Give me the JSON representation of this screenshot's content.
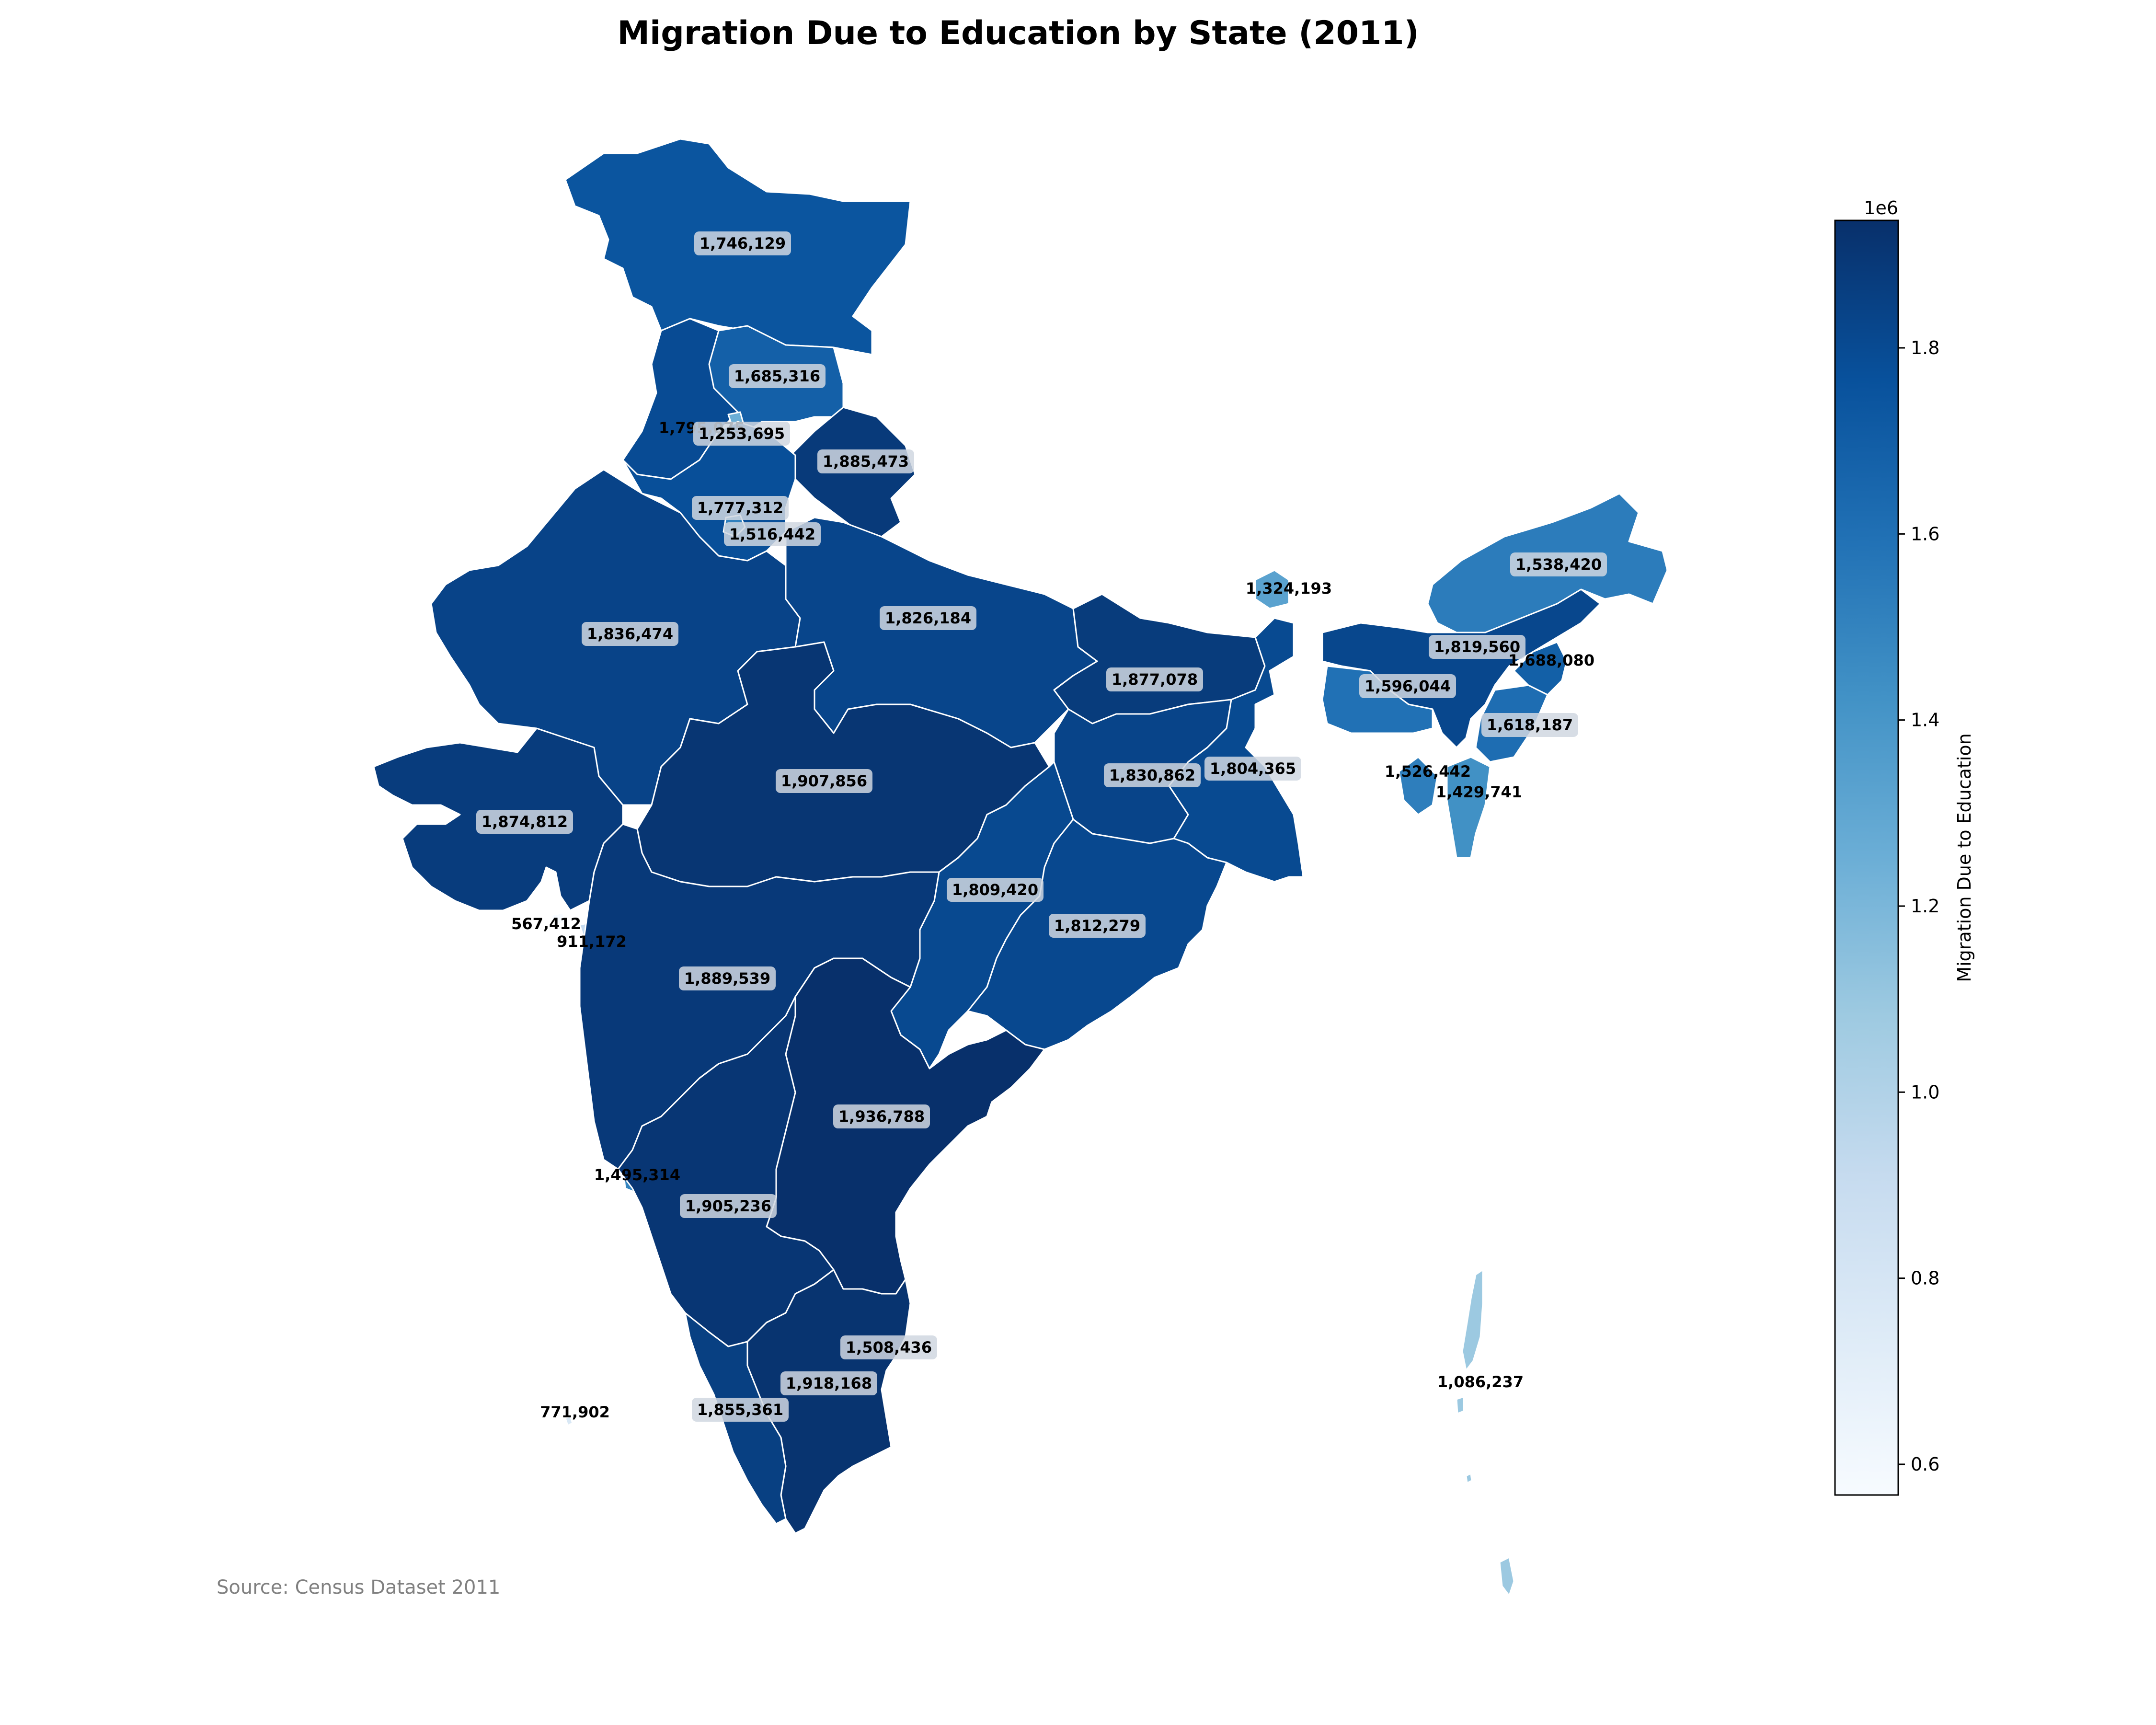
{
  "title": "Migration Due to Education by State (2011)",
  "source": "Source: Census Dataset 2011",
  "colors": {
    "low": "#f7fbff",
    "high": "#08306b",
    "border": "#ffffff",
    "label_bg": "#d0d7e0"
  },
  "colorbar": {
    "label": "Migration Due to Education",
    "exponent": "1e6",
    "min": 0.567,
    "max": 1.937,
    "ticks": [
      "0.6",
      "0.8",
      "1.0",
      "1.2",
      "1.4",
      "1.6",
      "1.8"
    ],
    "tick_values": [
      0.6,
      0.8,
      1.0,
      1.2,
      1.4,
      1.6,
      1.8
    ]
  },
  "chart_data": {
    "type": "choropleth",
    "regions": [
      {
        "id": "jammu-kashmir",
        "label": "1,746,129",
        "value": 1746129
      },
      {
        "id": "himachal-pradesh",
        "label": "1,685,316",
        "value": 1685316
      },
      {
        "id": "punjab",
        "label": "1,795,075",
        "value": 1795075
      },
      {
        "id": "chandigarh",
        "label": "1,253,695",
        "value": 1253695
      },
      {
        "id": "uttarakhand",
        "label": "1,885,473",
        "value": 1885473
      },
      {
        "id": "haryana",
        "label": "1,777,312",
        "value": 1777312
      },
      {
        "id": "delhi",
        "label": "1,516,442",
        "value": 1516442
      },
      {
        "id": "rajasthan",
        "label": "1,836,474",
        "value": 1836474
      },
      {
        "id": "uttar-pradesh",
        "label": "1,826,184",
        "value": 1826184
      },
      {
        "id": "bihar",
        "label": "1,877,078",
        "value": 1877078
      },
      {
        "id": "sikkim",
        "label": "1,324,193",
        "value": 1324193
      },
      {
        "id": "arunachal-pradesh",
        "label": "1,538,420",
        "value": 1538420
      },
      {
        "id": "assam",
        "label": "1,819,560",
        "value": 1819560
      },
      {
        "id": "nagaland",
        "label": "1,688,080",
        "value": 1688080
      },
      {
        "id": "meghalaya",
        "label": "1,596,044",
        "value": 1596044
      },
      {
        "id": "manipur",
        "label": "1,618,187",
        "value": 1618187
      },
      {
        "id": "tripura",
        "label": "1,526,442",
        "value": 1526442
      },
      {
        "id": "mizoram",
        "label": "1,429,741",
        "value": 1429741
      },
      {
        "id": "jharkhand",
        "label": "1,830,862",
        "value": 1830862
      },
      {
        "id": "west-bengal",
        "label": "1,804,365",
        "value": 1804365
      },
      {
        "id": "gujarat",
        "label": "1,874,812",
        "value": 1874812
      },
      {
        "id": "madhya-pradesh",
        "label": "1,907,856",
        "value": 1907856
      },
      {
        "id": "chhattisgarh",
        "label": "1,809,420",
        "value": 1809420
      },
      {
        "id": "odisha",
        "label": "1,812,279",
        "value": 1812279
      },
      {
        "id": "daman-diu",
        "label": "567,412",
        "value": 567412
      },
      {
        "id": "dadra-nagar-haveli",
        "label": "911,172",
        "value": 911172
      },
      {
        "id": "maharashtra",
        "label": "1,889,539",
        "value": 1889539
      },
      {
        "id": "telangana-andhra",
        "label": "1,936,788",
        "value": 1936788
      },
      {
        "id": "goa",
        "label": "1,495,314",
        "value": 1495314
      },
      {
        "id": "karnataka",
        "label": "1,905,236",
        "value": 1905236
      },
      {
        "id": "puducherry",
        "label": "1,508,436",
        "value": 1508436
      },
      {
        "id": "tamil-nadu",
        "label": "1,918,168",
        "value": 1918168
      },
      {
        "id": "kerala",
        "label": "1,855,361",
        "value": 1855361
      },
      {
        "id": "lakshadweep",
        "label": "771,902",
        "value": 771902
      },
      {
        "id": "andaman-nicobar",
        "label": "1,086,237",
        "value": 1086237
      }
    ]
  }
}
